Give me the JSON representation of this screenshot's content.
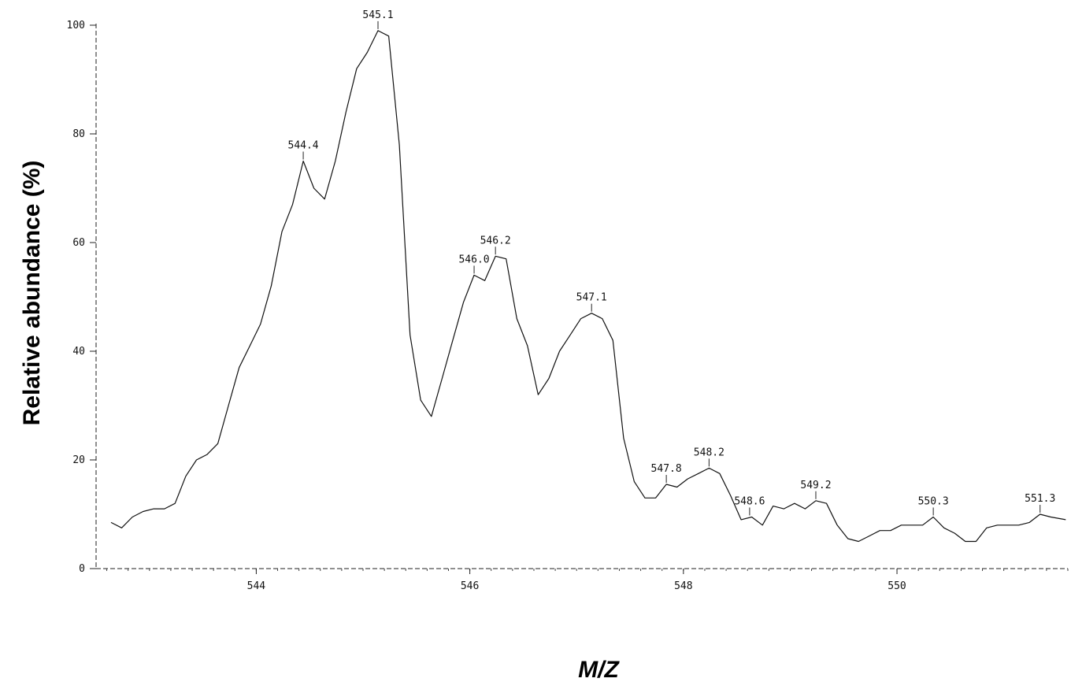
{
  "chart_data": {
    "type": "line",
    "title": "",
    "xlabel": "M/Z",
    "ylabel": "Relative abundance (%)",
    "xlim": [
      542.5,
      551.6
    ],
    "ylim": [
      0,
      100
    ],
    "x_ticks": [
      544,
      546,
      548,
      550
    ],
    "x_tick_labels": [
      "544",
      "546",
      "548",
      "550"
    ],
    "y_ticks": [
      0,
      20,
      40,
      60,
      80,
      100
    ],
    "y_tick_labels": [
      "0",
      "20",
      "40",
      "60",
      "80",
      "100"
    ],
    "grid": false,
    "legend": "none",
    "line_color": "#111111",
    "series": [
      {
        "x": [
          542.64,
          542.74,
          542.84,
          542.94,
          543.04,
          543.14,
          543.24,
          543.34,
          543.44,
          543.54,
          543.64,
          543.74,
          543.84,
          543.94,
          544.04,
          544.14,
          544.24,
          544.34,
          544.44,
          544.54,
          544.64,
          544.74,
          544.84,
          544.94,
          545.04,
          545.14,
          545.24,
          545.34,
          545.44,
          545.54,
          545.64,
          545.74,
          545.84,
          545.94,
          546.04,
          546.14,
          546.24,
          546.34,
          546.44,
          546.54,
          546.64,
          546.74,
          546.84,
          546.94,
          547.04,
          547.14,
          547.24,
          547.34,
          547.44,
          547.54,
          547.64,
          547.74,
          547.84,
          547.94,
          548.04,
          548.14,
          548.24,
          548.34,
          548.44,
          548.54,
          548.64,
          548.74,
          548.84,
          548.94,
          549.04,
          549.14,
          549.24,
          549.34,
          549.44,
          549.54,
          549.64,
          549.74,
          549.84,
          549.94,
          550.04,
          550.14,
          550.24,
          550.34,
          550.44,
          550.54,
          550.64,
          550.74,
          550.84,
          550.94,
          551.04,
          551.14,
          551.24,
          551.34,
          551.44,
          551.58
        ],
        "values": [
          8.5,
          7.5,
          9.5,
          10.5,
          11,
          11,
          12,
          17,
          20,
          21,
          23,
          30,
          37,
          41,
          45,
          52,
          62,
          67,
          75,
          70,
          68,
          75,
          84,
          92,
          95,
          99,
          98,
          78,
          43,
          31,
          28,
          35,
          42,
          49,
          54,
          53,
          57.5,
          57,
          46,
          41,
          32,
          35,
          40,
          43,
          46,
          47,
          46,
          42,
          24,
          16,
          13,
          13,
          15.5,
          15,
          16.5,
          17.5,
          18.5,
          17.5,
          13.5,
          9,
          9.5,
          8,
          11.5,
          11,
          12,
          11,
          12.5,
          12,
          8,
          5.5,
          5,
          6,
          7,
          7,
          8,
          8,
          8,
          9.5,
          7.5,
          6.5,
          5,
          5,
          7.5,
          8,
          8,
          8,
          8.5,
          10,
          9.5,
          9
        ]
      }
    ],
    "annotations": [
      {
        "text": "544.4",
        "x": 544.44,
        "y": 75
      },
      {
        "text": "545.1",
        "x": 545.14,
        "y": 99
      },
      {
        "text": "546.0",
        "x": 546.04,
        "y": 54
      },
      {
        "text": "546.2",
        "x": 546.24,
        "y": 57.5
      },
      {
        "text": "547.1",
        "x": 547.14,
        "y": 47
      },
      {
        "text": "547.8",
        "x": 547.84,
        "y": 15.5
      },
      {
        "text": "548.2",
        "x": 548.24,
        "y": 18.5
      },
      {
        "text": "548.6",
        "x": 548.62,
        "y": 9.5
      },
      {
        "text": "549.2",
        "x": 549.24,
        "y": 12.5
      },
      {
        "text": "550.3",
        "x": 550.34,
        "y": 9.5
      },
      {
        "text": "551.3",
        "x": 551.34,
        "y": 10
      }
    ]
  }
}
